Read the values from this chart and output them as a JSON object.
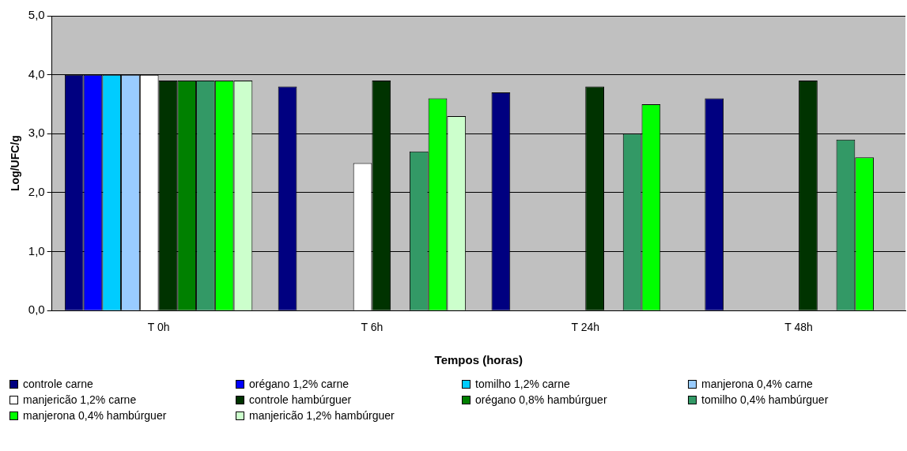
{
  "chart_data": {
    "type": "bar",
    "xlabel": "Tempos (horas)",
    "ylabel": "Log/UFC/g",
    "categories": [
      "T 0h",
      "T 6h",
      "T 24h",
      "T 48h"
    ],
    "series": [
      {
        "name": "controle carne",
        "color": "#000080",
        "values": [
          4.0,
          3.8,
          3.7,
          3.6
        ]
      },
      {
        "name": "orégano 1,2% carne",
        "color": "#0000ff",
        "values": [
          4.0,
          null,
          null,
          null
        ]
      },
      {
        "name": "tomilho 1,2% carne",
        "color": "#00ccff",
        "values": [
          4.0,
          null,
          null,
          null
        ]
      },
      {
        "name": "manjerona 0,4% carne",
        "color": "#99ccff",
        "values": [
          4.0,
          null,
          null,
          null
        ]
      },
      {
        "name": "manjericão 1,2% carne",
        "color": "#ffffff",
        "values": [
          4.0,
          2.5,
          null,
          null
        ]
      },
      {
        "name": "controle hambúrguer",
        "color": "#003300",
        "values": [
          3.9,
          3.9,
          3.8,
          3.9
        ]
      },
      {
        "name": "orégano 0,8% hambúrguer",
        "color": "#008000",
        "values": [
          3.9,
          null,
          null,
          null
        ]
      },
      {
        "name": "tomilho 0,4% hambúrguer",
        "color": "#339966",
        "values": [
          3.9,
          2.7,
          3.0,
          2.9
        ]
      },
      {
        "name": "manjerona 0,4% hambúrguer",
        "color": "#00ff00",
        "values": [
          3.9,
          3.6,
          3.5,
          2.6
        ]
      },
      {
        "name": "manjericão 1,2% hambúrguer",
        "color": "#ccffcc",
        "values": [
          3.9,
          3.3,
          null,
          null
        ]
      }
    ],
    "ylim": [
      0,
      5
    ],
    "yticks": [
      {
        "value": 0,
        "label": "0,0"
      },
      {
        "value": 1,
        "label": "1,0"
      },
      {
        "value": 2,
        "label": "2,0"
      },
      {
        "value": 3,
        "label": "3,0"
      },
      {
        "value": 4,
        "label": "4,0"
      },
      {
        "value": 5,
        "label": "5,0"
      }
    ],
    "grid": "y",
    "legend": "bottom"
  }
}
